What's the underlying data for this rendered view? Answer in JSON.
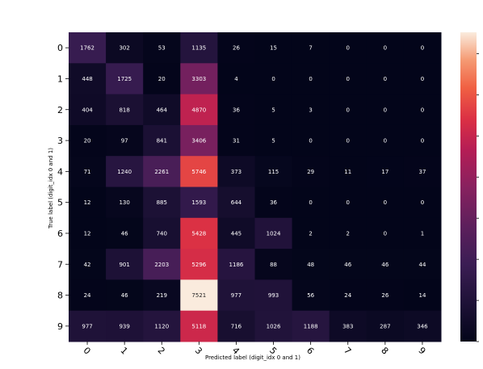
{
  "chart_data": {
    "type": "heatmap",
    "title": "",
    "xlabel": "Predicted label (digit_idx 0 and 1)",
    "ylabel": "True label (digit_idx 0 and 1)",
    "x_tick_labels": [
      "0",
      "1",
      "2",
      "3",
      "4",
      "5",
      "6",
      "7",
      "8",
      "9"
    ],
    "y_tick_labels": [
      "0",
      "1",
      "2",
      "3",
      "4",
      "5",
      "6",
      "7",
      "8",
      "9"
    ],
    "matrix": [
      [
        1762,
        302,
        53,
        1135,
        26,
        15,
        7,
        0,
        0,
        0
      ],
      [
        448,
        1725,
        20,
        3303,
        4,
        0,
        0,
        0,
        0,
        0
      ],
      [
        404,
        818,
        464,
        4870,
        36,
        5,
        3,
        0,
        0,
        0
      ],
      [
        20,
        97,
        841,
        3406,
        31,
        5,
        0,
        0,
        0,
        0
      ],
      [
        71,
        1240,
        2261,
        5746,
        373,
        115,
        29,
        11,
        17,
        37
      ],
      [
        12,
        130,
        885,
        1593,
        644,
        36,
        0,
        0,
        0,
        0
      ],
      [
        12,
        46,
        740,
        5428,
        445,
        1024,
        2,
        2,
        0,
        1
      ],
      [
        42,
        901,
        2203,
        5296,
        1186,
        88,
        48,
        46,
        46,
        44
      ],
      [
        24,
        46,
        219,
        7521,
        977,
        993,
        56,
        24,
        26,
        14
      ],
      [
        977,
        939,
        1120,
        5118,
        716,
        1026,
        1188,
        383,
        287,
        346
      ]
    ],
    "colormap": "rocket",
    "colorbar": true,
    "vmin": 0,
    "vmax": 7521,
    "annotations": true
  }
}
